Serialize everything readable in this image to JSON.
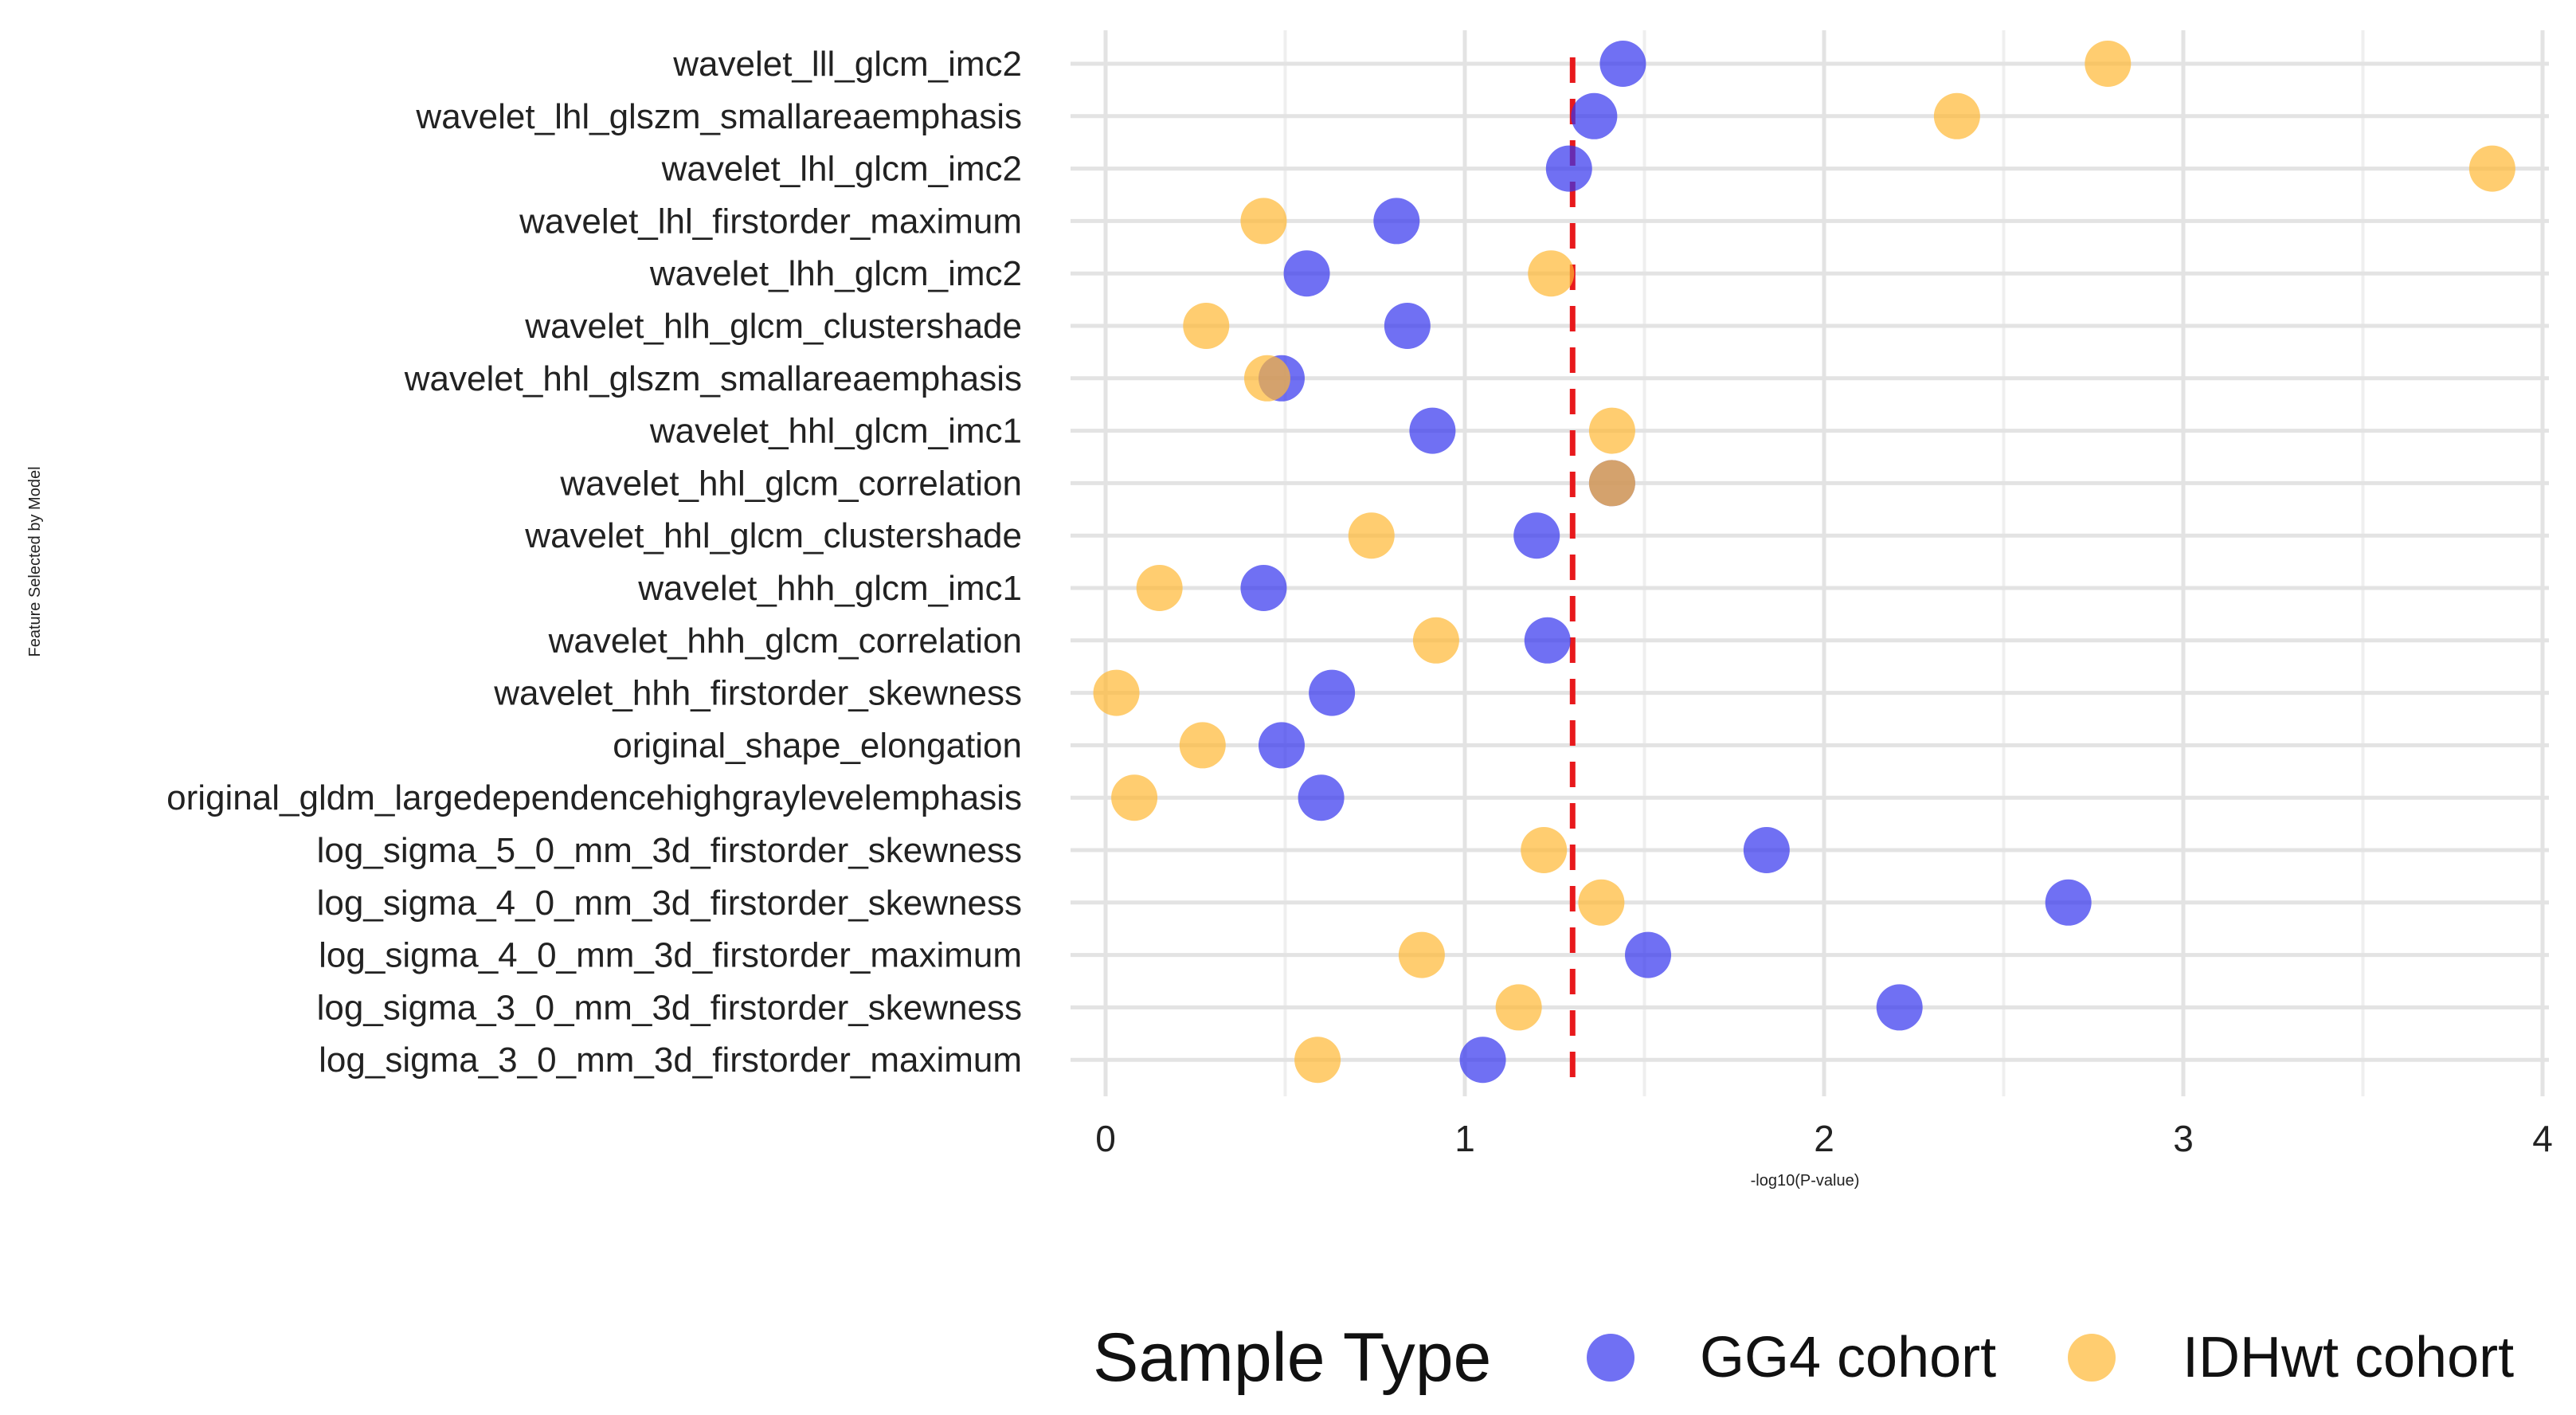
{
  "chart_data": {
    "type": "scatter",
    "title": "",
    "xlabel": "-log10(P-value)",
    "ylabel": "Feature Selected by Model",
    "xlim": [
      0,
      4
    ],
    "xticks": [
      "0",
      "1",
      "2",
      "3",
      "4"
    ],
    "grid": true,
    "threshold": {
      "value": 1.3,
      "style": "dashed",
      "color": "#e8191c"
    },
    "categories": [
      "wavelet_lll_glcm_imc2",
      "wavelet_lhl_glszm_smallareaemphasis",
      "wavelet_lhl_glcm_imc2",
      "wavelet_lhl_firstorder_maximum",
      "wavelet_lhh_glcm_imc2",
      "wavelet_hlh_glcm_clustershade",
      "wavelet_hhl_glszm_smallareaemphasis",
      "wavelet_hhl_glcm_imc1",
      "wavelet_hhl_glcm_correlation",
      "wavelet_hhl_glcm_clustershade",
      "wavelet_hhh_glcm_imc1",
      "wavelet_hhh_glcm_correlation",
      "wavelet_hhh_firstorder_skewness",
      "original_shape_elongation",
      "original_gldm_largedependencehighgraylevelemphasis",
      "log_sigma_5_0_mm_3d_firstorder_skewness",
      "log_sigma_4_0_mm_3d_firstorder_skewness",
      "log_sigma_4_0_mm_3d_firstorder_maximum",
      "log_sigma_3_0_mm_3d_firstorder_skewness",
      "log_sigma_3_0_mm_3d_firstorder_maximum"
    ],
    "series": [
      {
        "name": "GG4 cohort",
        "color": "#3333ee",
        "values": [
          1.44,
          1.36,
          1.29,
          0.81,
          0.56,
          0.84,
          0.49,
          0.91,
          1.41,
          1.2,
          0.44,
          1.23,
          0.63,
          0.49,
          0.6,
          1.84,
          2.68,
          1.51,
          2.21,
          1.05
        ]
      },
      {
        "name": "IDHwt cohort",
        "color": "#ffb833",
        "values": [
          2.79,
          2.37,
          3.86,
          0.44,
          1.24,
          0.28,
          0.45,
          1.41,
          1.41,
          0.74,
          0.15,
          0.92,
          0.03,
          0.27,
          0.08,
          1.22,
          1.38,
          0.88,
          1.15,
          0.59
        ]
      }
    ],
    "legend": {
      "title": "Sample Type",
      "position": "bottom"
    }
  }
}
